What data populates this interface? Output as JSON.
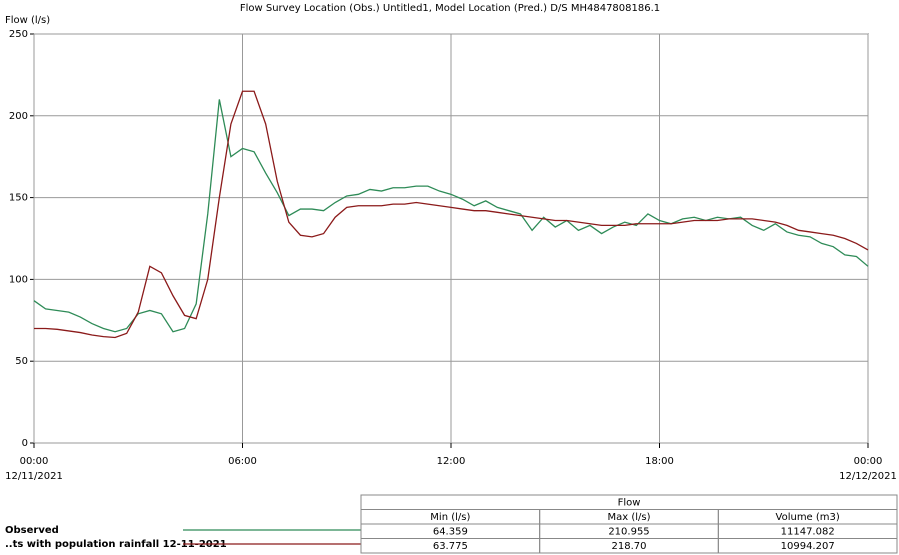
{
  "chart_data": {
    "type": "line",
    "title": "Flow Survey Location (Obs.) Untitled1, Model Location (Pred.) D/S MH4847808186.1",
    "y_label": "Flow (l/s)",
    "x": [
      0,
      20,
      40,
      60,
      80,
      100,
      120,
      140,
      160,
      180,
      200,
      220,
      240,
      260,
      280,
      300,
      320,
      340,
      360,
      380,
      400,
      420,
      440,
      460,
      480,
      500,
      520,
      540,
      560,
      580,
      600,
      620,
      640,
      660,
      680,
      700,
      720,
      740,
      760,
      780,
      800,
      820,
      840,
      860,
      880,
      900,
      920,
      940,
      960,
      980,
      1000,
      1020,
      1040,
      1060,
      1080,
      1100,
      1120,
      1140,
      1160,
      1180,
      1200,
      1220,
      1240,
      1260,
      1280,
      1300,
      1320,
      1340,
      1360,
      1380,
      1400,
      1420,
      1440
    ],
    "xlim": [
      0,
      1440
    ],
    "xticks": [
      {
        "value": 0,
        "label": "00:00"
      },
      {
        "value": 360,
        "label": "06:00"
      },
      {
        "value": 720,
        "label": "12:00"
      },
      {
        "value": 1080,
        "label": "18:00"
      },
      {
        "value": 1440,
        "label": "00:00"
      }
    ],
    "x_date_labels": [
      {
        "value": 0,
        "label": "12/11/2021"
      },
      {
        "value": 1440,
        "label": "12/12/2021"
      }
    ],
    "ylim": [
      0,
      250
    ],
    "yticks": [
      0,
      50,
      100,
      150,
      200,
      250
    ],
    "grid": true,
    "series": [
      {
        "name": "Observed",
        "color": "#2e8b57",
        "values": [
          87,
          82,
          81,
          80,
          77,
          73,
          70,
          68,
          70,
          79,
          81,
          79,
          68,
          70,
          85,
          140,
          210,
          175,
          180,
          178,
          165,
          153,
          139,
          143,
          143,
          142,
          147,
          151,
          152,
          155,
          154,
          156,
          156,
          157,
          157,
          154,
          152,
          149,
          145,
          148,
          144,
          142,
          140,
          130,
          138,
          132,
          136,
          130,
          133,
          128,
          132,
          135,
          133,
          140,
          136,
          134,
          137,
          138,
          136,
          138,
          137,
          138,
          133,
          130,
          134,
          129,
          127,
          126,
          122,
          120,
          115,
          114,
          108
        ]
      },
      {
        "name": "..ts with population rainfall 12-11-2021",
        "color": "#8b1a1a",
        "values": [
          70,
          70,
          69.5,
          68.5,
          67.5,
          66,
          65,
          64.5,
          67,
          80,
          108,
          104,
          90,
          78,
          76,
          100,
          150,
          195,
          215,
          215,
          195,
          160,
          135,
          127,
          126,
          128,
          138,
          144,
          145,
          145,
          145,
          146,
          146,
          147,
          146,
          145,
          144,
          143,
          142,
          142,
          141,
          140,
          139,
          138,
          137,
          136,
          136,
          135,
          134,
          133,
          133,
          133,
          134,
          134,
          134,
          134,
          135,
          136,
          136,
          136,
          137,
          137,
          137,
          136,
          135,
          133,
          130,
          129,
          128,
          127,
          125,
          122,
          118
        ]
      }
    ]
  },
  "table": {
    "title": "Flow",
    "columns": [
      "Min (l/s)",
      "Max (l/s)",
      "Volume (m3)"
    ],
    "rows": [
      [
        "64.359",
        "210.955",
        "11147.082"
      ],
      [
        "63.775",
        "218.70",
        "10994.207"
      ]
    ]
  }
}
